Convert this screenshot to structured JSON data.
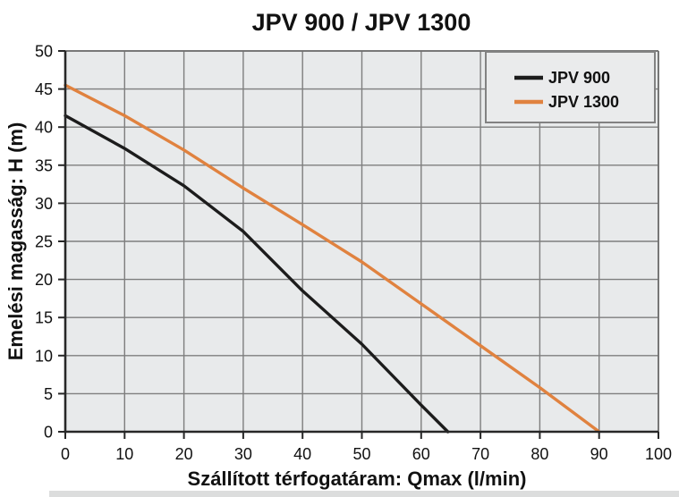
{
  "chart_data": {
    "type": "line",
    "title": "JPV 900 / JPV 1300",
    "xlabel": "Szállított térfogatáram: Qmax (l/min)",
    "ylabel": "Emelési magasság: H (m)",
    "xlim": [
      0,
      100
    ],
    "xtick_step": 10,
    "ylim": [
      0,
      50
    ],
    "ytick_step": 5,
    "grid": true,
    "legend_position": "top-right",
    "series": [
      {
        "name": "JPV 900",
        "color": "#1c1c1c",
        "x": [
          0,
          10,
          20,
          30,
          40,
          50,
          60,
          64.5
        ],
        "y": [
          41.5,
          37.2,
          32.3,
          26.3,
          18.5,
          11.5,
          3.5,
          0
        ]
      },
      {
        "name": "JPV 1300",
        "color": "#e0823f",
        "x": [
          0,
          10,
          20,
          30,
          40,
          50,
          60,
          70,
          80,
          90
        ],
        "y": [
          45.5,
          41.5,
          37.0,
          32.0,
          27.2,
          22.3,
          16.8,
          11.3,
          5.8,
          0
        ]
      }
    ],
    "colors": {
      "plot_background": "#e8eaeb",
      "grid": "#7e7e7e",
      "axis": "#272727",
      "text": "#111111"
    }
  }
}
